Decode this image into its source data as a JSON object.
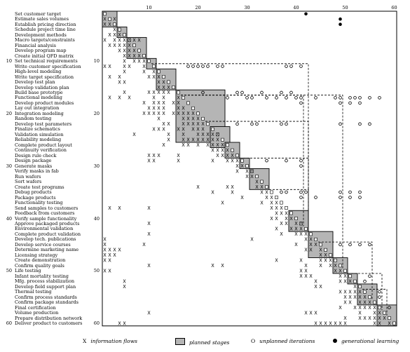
{
  "tasks": [
    "Set customer target",
    "Estimate sales volumes",
    "Establish pricing direction",
    "Schedule project time line",
    "Development methods",
    "Macro targets/constraints",
    "Financial analysis",
    "Develop program map",
    "Create initial QFD matrix",
    "Set technical requirements",
    "Write customer specification",
    "High-level modeling",
    "Write target specification",
    "Develop test plan",
    "Develop validation plan",
    "Build base prototype",
    "Functional modeling",
    "Develop product modules",
    "Lay out integration",
    "Integration modeling",
    "Random testing",
    "Develop test parameters",
    "Finalize schematics",
    "Validation simulation",
    "Reliability modeling",
    "Complete product layout",
    "Continuity verification",
    "Design rule check",
    "Design package",
    "Generate masks",
    "Verify masks in fab",
    "Run wafers",
    "Sort wafers",
    "Create test programs",
    "Debug products",
    "Package products",
    "Functionality testing",
    "Send samples to customers",
    "Feedback from customers",
    "Verify sample functionality",
    "Approve packaged products",
    "Environmental validation",
    "Complete product validation",
    "Develop tech. publications",
    "Develop service courses",
    "Determine marketing name",
    "Licensing strategy",
    "Create demonstration",
    "Confirm quality goals",
    "Life testing",
    "Infant mortality testing",
    "Mfg. process stabilization",
    "Develop field support plan",
    "Thermal testing",
    "Confirm process standards",
    "Confirm package standards",
    "Final certification",
    "Volume production",
    "Prepare distribution network",
    "Deliver product to customers"
  ],
  "row_number_labels": [
    "10",
    "20",
    "30",
    "40",
    "50",
    "60"
  ],
  "column_number_labels": [
    "10",
    "20",
    "30",
    "40",
    "50",
    "60"
  ],
  "matrix": {
    "blocks": [
      [
        1,
        3
      ],
      [
        4,
        5
      ],
      [
        6,
        9
      ],
      [
        10,
        11
      ],
      [
        12,
        15
      ],
      [
        16,
        25
      ],
      [
        23,
        26
      ],
      [
        26,
        28
      ],
      [
        29,
        30
      ],
      [
        31,
        34
      ],
      [
        39,
        42
      ],
      [
        43,
        47
      ],
      [
        48,
        50
      ],
      [
        51,
        52
      ],
      [
        53,
        56
      ],
      [
        57,
        60
      ]
    ],
    "info_marks": [
      [
        2,
        1
      ],
      [
        2,
        3
      ],
      [
        3,
        1
      ],
      [
        3,
        2
      ],
      [
        4,
        3
      ],
      [
        5,
        2
      ],
      [
        5,
        3
      ],
      [
        5,
        4
      ],
      [
        6,
        1
      ],
      [
        6,
        3
      ],
      [
        6,
        4
      ],
      [
        6,
        5
      ],
      [
        6,
        6
      ],
      [
        6,
        7
      ],
      [
        6,
        8
      ],
      [
        7,
        2
      ],
      [
        7,
        3
      ],
      [
        7,
        4
      ],
      [
        7,
        5
      ],
      [
        7,
        6
      ],
      [
        8,
        4
      ],
      [
        8,
        5
      ],
      [
        8,
        6
      ],
      [
        8,
        7
      ],
      [
        9,
        5
      ],
      [
        9,
        6
      ],
      [
        9,
        7
      ],
      [
        9,
        8
      ],
      [
        10,
        5
      ],
      [
        10,
        7
      ],
      [
        10,
        8
      ],
      [
        10,
        9
      ],
      [
        11,
        1
      ],
      [
        11,
        2
      ],
      [
        11,
        5
      ],
      [
        11,
        6
      ],
      [
        11,
        9
      ],
      [
        12,
        5
      ],
      [
        12,
        9
      ],
      [
        12,
        11
      ],
      [
        13,
        2
      ],
      [
        13,
        4
      ],
      [
        13,
        10
      ],
      [
        13,
        11
      ],
      [
        13,
        12
      ],
      [
        14,
        4
      ],
      [
        14,
        5
      ],
      [
        14,
        12
      ],
      [
        14,
        13
      ],
      [
        15,
        12
      ],
      [
        15,
        13
      ],
      [
        15,
        14
      ],
      [
        16,
        5
      ],
      [
        16,
        10
      ],
      [
        16,
        11
      ],
      [
        16,
        12
      ],
      [
        16,
        13
      ],
      [
        16,
        14
      ],
      [
        17,
        2
      ],
      [
        17,
        4
      ],
      [
        17,
        6
      ],
      [
        17,
        11
      ],
      [
        17,
        13
      ],
      [
        17,
        16
      ],
      [
        18,
        9
      ],
      [
        18,
        11
      ],
      [
        18,
        12
      ],
      [
        18,
        13
      ],
      [
        18,
        15
      ],
      [
        18,
        16
      ],
      [
        19,
        10
      ],
      [
        19,
        11
      ],
      [
        19,
        12
      ],
      [
        19,
        13
      ],
      [
        19,
        16
      ],
      [
        19,
        17
      ],
      [
        20,
        9
      ],
      [
        20,
        10
      ],
      [
        20,
        11
      ],
      [
        20,
        12
      ],
      [
        20,
        13
      ],
      [
        20,
        15
      ],
      [
        20,
        16
      ],
      [
        20,
        17
      ],
      [
        20,
        18
      ],
      [
        20,
        19
      ],
      [
        21,
        12
      ],
      [
        21,
        17
      ],
      [
        21,
        18
      ],
      [
        21,
        19
      ],
      [
        21,
        20
      ],
      [
        22,
        13
      ],
      [
        22,
        14
      ],
      [
        22,
        17
      ],
      [
        22,
        18
      ],
      [
        22,
        19
      ],
      [
        22,
        20
      ],
      [
        22,
        21
      ],
      [
        23,
        11
      ],
      [
        23,
        12
      ],
      [
        23,
        13
      ],
      [
        23,
        16
      ],
      [
        23,
        17
      ],
      [
        23,
        19
      ],
      [
        23,
        20
      ],
      [
        23,
        21
      ],
      [
        24,
        7
      ],
      [
        24,
        14
      ],
      [
        24,
        17
      ],
      [
        24,
        20
      ],
      [
        24,
        21
      ],
      [
        24,
        22
      ],
      [
        24,
        23
      ],
      [
        24,
        24
      ],
      [
        25,
        14
      ],
      [
        25,
        17
      ],
      [
        25,
        18
      ],
      [
        25,
        19
      ],
      [
        25,
        20
      ],
      [
        25,
        21
      ],
      [
        25,
        22
      ],
      [
        25,
        23
      ],
      [
        25,
        24
      ],
      [
        26,
        13
      ],
      [
        26,
        17
      ],
      [
        26,
        18
      ],
      [
        26,
        20
      ],
      [
        26,
        22
      ],
      [
        26,
        23
      ],
      [
        26,
        24
      ],
      [
        26,
        25
      ],
      [
        27,
        23
      ],
      [
        27,
        24
      ],
      [
        27,
        25
      ],
      [
        27,
        26
      ],
      [
        28,
        10
      ],
      [
        28,
        11
      ],
      [
        28,
        12
      ],
      [
        28,
        16
      ],
      [
        28,
        24
      ],
      [
        28,
        25
      ],
      [
        28,
        26
      ],
      [
        28,
        27
      ],
      [
        29,
        10
      ],
      [
        29,
        11
      ],
      [
        29,
        16
      ],
      [
        29,
        23
      ],
      [
        29,
        26
      ],
      [
        29,
        27
      ],
      [
        29,
        28
      ],
      [
        30,
        28
      ],
      [
        30,
        29
      ],
      [
        31,
        28
      ],
      [
        31,
        30
      ],
      [
        31,
        31
      ],
      [
        32,
        30
      ],
      [
        32,
        31
      ],
      [
        33,
        32
      ],
      [
        34,
        20
      ],
      [
        34,
        26
      ],
      [
        34,
        27
      ],
      [
        34,
        32
      ],
      [
        34,
        33
      ],
      [
        35,
        23
      ],
      [
        35,
        27
      ],
      [
        35,
        33
      ],
      [
        35,
        34
      ],
      [
        36,
        29
      ],
      [
        36,
        34
      ],
      [
        36,
        35
      ],
      [
        37,
        25
      ],
      [
        37,
        33
      ],
      [
        37,
        35
      ],
      [
        37,
        36
      ],
      [
        38,
        2
      ],
      [
        38,
        4
      ],
      [
        38,
        10
      ],
      [
        38,
        35
      ],
      [
        38,
        36
      ],
      [
        38,
        37
      ],
      [
        39,
        36
      ],
      [
        39,
        37
      ],
      [
        39,
        38
      ],
      [
        40,
        35
      ],
      [
        40,
        36
      ],
      [
        40,
        38
      ],
      [
        40,
        39
      ],
      [
        41,
        10
      ],
      [
        41,
        37
      ],
      [
        41,
        38
      ],
      [
        41,
        40
      ],
      [
        41,
        41
      ],
      [
        42,
        36
      ],
      [
        42,
        39
      ],
      [
        42,
        40
      ],
      [
        42,
        41
      ],
      [
        43,
        10
      ],
      [
        43,
        37
      ],
      [
        43,
        40
      ],
      [
        43,
        41
      ],
      [
        43,
        42
      ],
      [
        44,
        1
      ],
      [
        44,
        31
      ],
      [
        44,
        42
      ],
      [
        44,
        43
      ],
      [
        45,
        1
      ],
      [
        45,
        9
      ],
      [
        45,
        40
      ],
      [
        45,
        43
      ],
      [
        45,
        44
      ],
      [
        46,
        1
      ],
      [
        46,
        2
      ],
      [
        46,
        3
      ],
      [
        46,
        4
      ],
      [
        46,
        42
      ],
      [
        46,
        43
      ],
      [
        46,
        45
      ],
      [
        47,
        1
      ],
      [
        47,
        2
      ],
      [
        47,
        3
      ],
      [
        47,
        45
      ],
      [
        47,
        46
      ],
      [
        48,
        1
      ],
      [
        48,
        2
      ],
      [
        48,
        36
      ],
      [
        48,
        41
      ],
      [
        48,
        45
      ],
      [
        48,
        46
      ],
      [
        48,
        47
      ],
      [
        49,
        10
      ],
      [
        49,
        23
      ],
      [
        49,
        25
      ],
      [
        49,
        42
      ],
      [
        49,
        45
      ],
      [
        49,
        47
      ],
      [
        49,
        48
      ],
      [
        50,
        1
      ],
      [
        50,
        2
      ],
      [
        50,
        41
      ],
      [
        50,
        42
      ],
      [
        50,
        48
      ],
      [
        50,
        49
      ],
      [
        51,
        41
      ],
      [
        51,
        42
      ],
      [
        51,
        43
      ],
      [
        51,
        49
      ],
      [
        51,
        50
      ],
      [
        52,
        5
      ],
      [
        52,
        44
      ],
      [
        52,
        49
      ],
      [
        52,
        50
      ],
      [
        52,
        51
      ],
      [
        53,
        5
      ],
      [
        53,
        44
      ],
      [
        53,
        45
      ],
      [
        53,
        52
      ],
      [
        54,
        49
      ],
      [
        54,
        50
      ],
      [
        54,
        51
      ],
      [
        54,
        52
      ],
      [
        54,
        53
      ],
      [
        55,
        50
      ],
      [
        55,
        51
      ],
      [
        55,
        52
      ],
      [
        55,
        53
      ],
      [
        55,
        54
      ],
      [
        56,
        50
      ],
      [
        56,
        51
      ],
      [
        56,
        53
      ],
      [
        56,
        54
      ],
      [
        56,
        55
      ],
      [
        57,
        49
      ],
      [
        57,
        52
      ],
      [
        57,
        53
      ],
      [
        57,
        54
      ],
      [
        57,
        55
      ],
      [
        57,
        56
      ],
      [
        58,
        10
      ],
      [
        58,
        42
      ],
      [
        58,
        43
      ],
      [
        58,
        44
      ],
      [
        58,
        53
      ],
      [
        58,
        56
      ],
      [
        58,
        57
      ],
      [
        59,
        50
      ],
      [
        59,
        53
      ],
      [
        59,
        54
      ],
      [
        59,
        55
      ],
      [
        59,
        56
      ],
      [
        59,
        57
      ],
      [
        59,
        58
      ],
      [
        60,
        4
      ],
      [
        60,
        5
      ],
      [
        60,
        44
      ],
      [
        60,
        45
      ],
      [
        60,
        46
      ],
      [
        60,
        47
      ],
      [
        60,
        48
      ],
      [
        60,
        49
      ],
      [
        60,
        50
      ],
      [
        60,
        56
      ],
      [
        60,
        57
      ],
      [
        60,
        59
      ]
    ],
    "iterations": [
      [
        11,
        18
      ],
      [
        11,
        19
      ],
      [
        11,
        20
      ],
      [
        11,
        21
      ],
      [
        11,
        22
      ],
      [
        11,
        24
      ],
      [
        11,
        25
      ],
      [
        11,
        38
      ],
      [
        11,
        39
      ],
      [
        11,
        41
      ],
      [
        16,
        21
      ],
      [
        16,
        28
      ],
      [
        16,
        29
      ],
      [
        16,
        33
      ],
      [
        16,
        37
      ],
      [
        16,
        39
      ],
      [
        17,
        26
      ],
      [
        17,
        30
      ],
      [
        17,
        31
      ],
      [
        17,
        34
      ],
      [
        17,
        36
      ],
      [
        17,
        38
      ],
      [
        17,
        40
      ],
      [
        17,
        41
      ],
      [
        17,
        44
      ],
      [
        17,
        48
      ],
      [
        17,
        49
      ],
      [
        17,
        51
      ],
      [
        17,
        52
      ],
      [
        17,
        53
      ],
      [
        17,
        55
      ],
      [
        17,
        57
      ],
      [
        18,
        41
      ],
      [
        18,
        49
      ],
      [
        18,
        51
      ],
      [
        18,
        53
      ],
      [
        22,
        28
      ],
      [
        22,
        31
      ],
      [
        22,
        32
      ],
      [
        22,
        37
      ],
      [
        22,
        38
      ],
      [
        22,
        49
      ],
      [
        22,
        53
      ],
      [
        22,
        55
      ],
      [
        29,
        34
      ],
      [
        29,
        38
      ],
      [
        29,
        41
      ],
      [
        30,
        41
      ],
      [
        35,
        37
      ],
      [
        35,
        38
      ],
      [
        35,
        41
      ],
      [
        35,
        42
      ],
      [
        35,
        49
      ],
      [
        35,
        51
      ],
      [
        35,
        53
      ],
      [
        36,
        41
      ],
      [
        36,
        44
      ],
      [
        36,
        49
      ],
      [
        36,
        51
      ],
      [
        36,
        53
      ],
      [
        45,
        49
      ],
      [
        45,
        51
      ],
      [
        45,
        53
      ],
      [
        45,
        55
      ],
      [
        51,
        55
      ],
      [
        52,
        54
      ],
      [
        54,
        57
      ],
      [
        55,
        57
      ],
      [
        57,
        59
      ]
    ],
    "learning": [
      [
        1,
        42
      ],
      [
        2,
        49
      ],
      [
        3,
        49
      ]
    ],
    "dashed_boxes": [
      [
        11,
        42
      ],
      [
        17,
        41
      ],
      [
        22,
        42
      ],
      [
        29,
        42
      ],
      [
        35,
        42
      ],
      [
        17,
        49
      ],
      [
        45,
        55
      ],
      [
        51,
        57
      ],
      [
        54,
        58
      ]
    ]
  },
  "legend": {
    "info_symbol": "X",
    "info_label": "information flows",
    "stage_label": "planned stages",
    "iter_symbol": "O",
    "iter_label": "unplanned iterations",
    "learn_label": "generational learning"
  },
  "colors": {
    "block_fill": "#b5b5b5",
    "ink": "#000000"
  }
}
